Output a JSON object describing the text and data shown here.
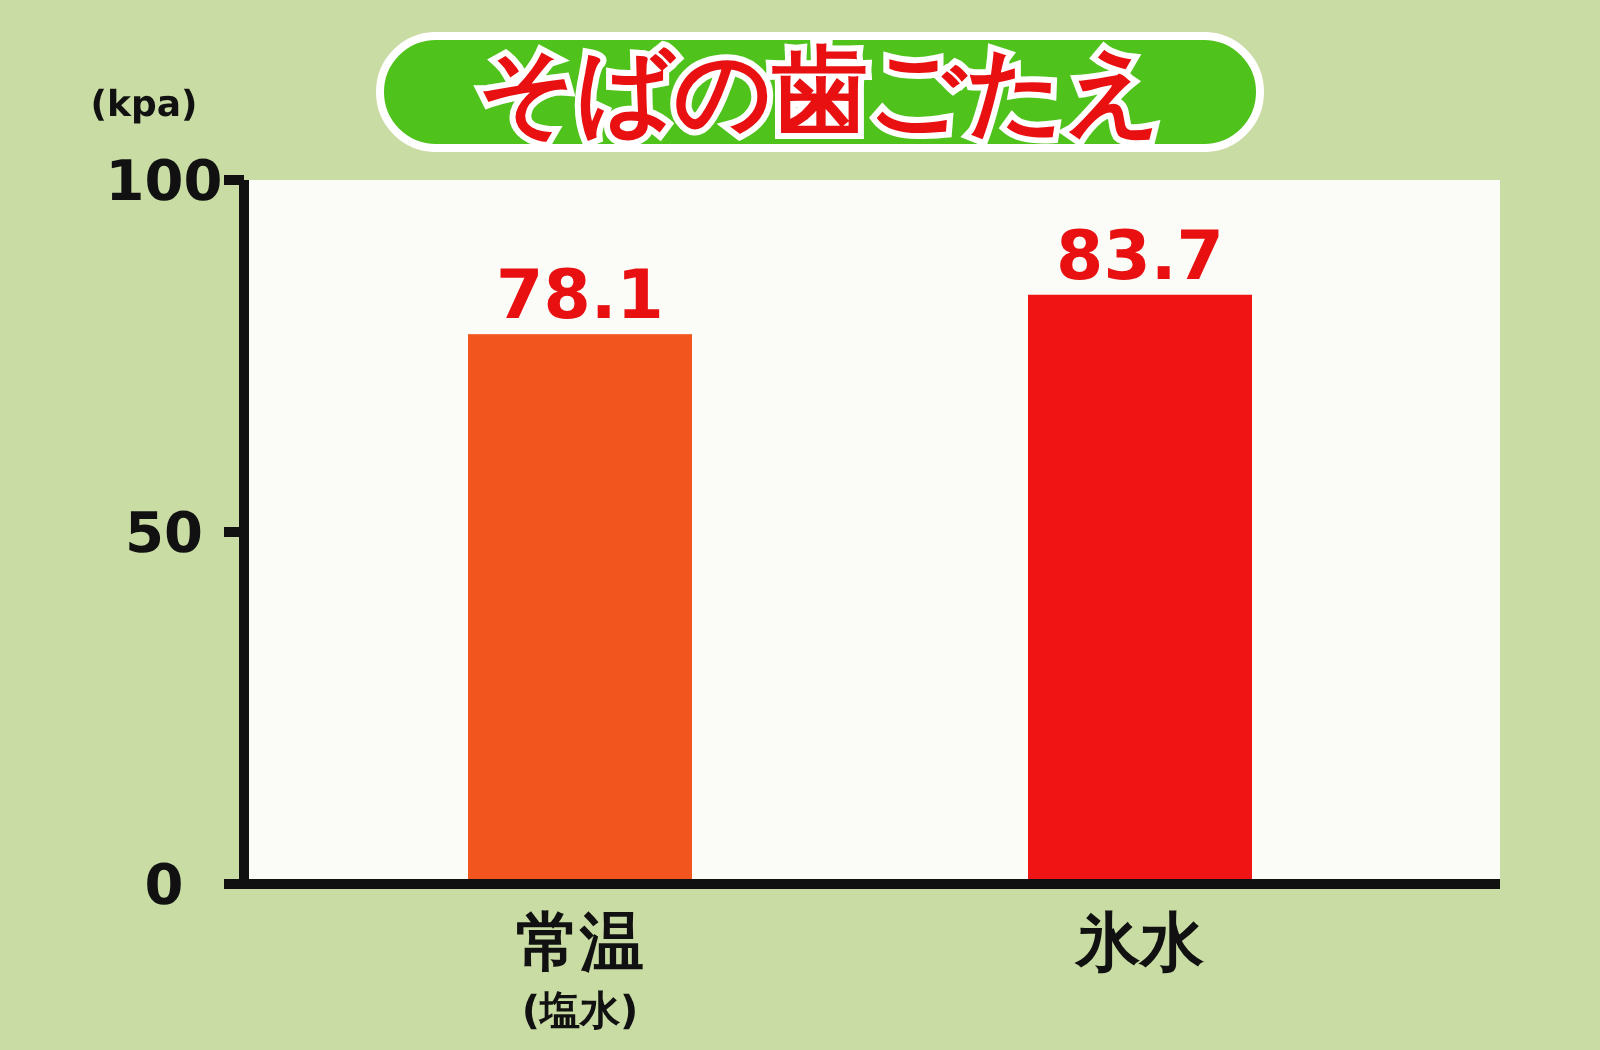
{
  "chart_data": {
    "type": "bar",
    "title": "そばの歯ごたえ",
    "ylabel": "(kpa)",
    "categories": [
      "常温\n(塩水)",
      "氷水"
    ],
    "values": [
      78.1,
      83.7
    ],
    "colors": [
      "#f2561e",
      "#f01414"
    ],
    "ylim": [
      0,
      100
    ],
    "yticks": [
      0,
      50,
      100
    ],
    "data_labels": true
  }
}
